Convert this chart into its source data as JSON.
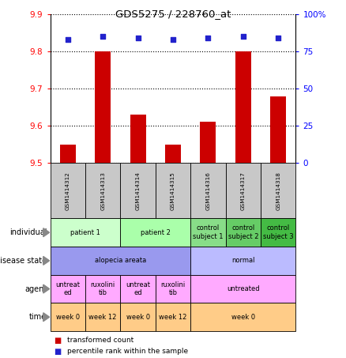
{
  "title": "GDS5275 / 228760_at",
  "samples": [
    "GSM1414312",
    "GSM1414313",
    "GSM1414314",
    "GSM1414315",
    "GSM1414316",
    "GSM1414317",
    "GSM1414318"
  ],
  "bar_values": [
    9.55,
    9.8,
    9.63,
    9.55,
    9.61,
    9.8,
    9.68
  ],
  "percentile_values": [
    83,
    85,
    84,
    83,
    84,
    85,
    84
  ],
  "ylim_left": [
    9.5,
    9.9
  ],
  "ylim_right": [
    0,
    100
  ],
  "yticks_left": [
    9.5,
    9.6,
    9.7,
    9.8,
    9.9
  ],
  "yticks_right": [
    0,
    25,
    50,
    75,
    100
  ],
  "ytick_right_labels": [
    "0",
    "25",
    "50",
    "75",
    "100%"
  ],
  "bar_color": "#cc0000",
  "dot_color": "#2222cc",
  "sample_bg_color": "#c8c8c8",
  "individual_row": {
    "label": "individual",
    "cells": [
      {
        "text": "patient 1",
        "colspan": 2,
        "color": "#ccffcc"
      },
      {
        "text": "patient 2",
        "colspan": 2,
        "color": "#aaffaa"
      },
      {
        "text": "control\nsubject 1",
        "colspan": 1,
        "color": "#88dd88"
      },
      {
        "text": "control\nsubject 2",
        "colspan": 1,
        "color": "#66cc66"
      },
      {
        "text": "control\nsubject 3",
        "colspan": 1,
        "color": "#44bb44"
      }
    ]
  },
  "disease_row": {
    "label": "disease state",
    "cells": [
      {
        "text": "alopecia areata",
        "colspan": 4,
        "color": "#9999ee"
      },
      {
        "text": "normal",
        "colspan": 3,
        "color": "#bbbbff"
      }
    ]
  },
  "agent_row": {
    "label": "agent",
    "cells": [
      {
        "text": "untreat\ned",
        "colspan": 1,
        "color": "#ffaaff"
      },
      {
        "text": "ruxolini\ntib",
        "colspan": 1,
        "color": "#ffaaff"
      },
      {
        "text": "untreat\ned",
        "colspan": 1,
        "color": "#ffaaff"
      },
      {
        "text": "ruxolini\ntib",
        "colspan": 1,
        "color": "#ffaaff"
      },
      {
        "text": "untreated",
        "colspan": 3,
        "color": "#ffaaff"
      }
    ]
  },
  "time_row": {
    "label": "time",
    "cells": [
      {
        "text": "week 0",
        "colspan": 1,
        "color": "#ffcc88"
      },
      {
        "text": "week 12",
        "colspan": 1,
        "color": "#ffcc88"
      },
      {
        "text": "week 0",
        "colspan": 1,
        "color": "#ffcc88"
      },
      {
        "text": "week 12",
        "colspan": 1,
        "color": "#ffcc88"
      },
      {
        "text": "week 0",
        "colspan": 3,
        "color": "#ffcc88"
      }
    ]
  },
  "fig_width": 4.38,
  "fig_height": 4.53,
  "dpi": 100
}
